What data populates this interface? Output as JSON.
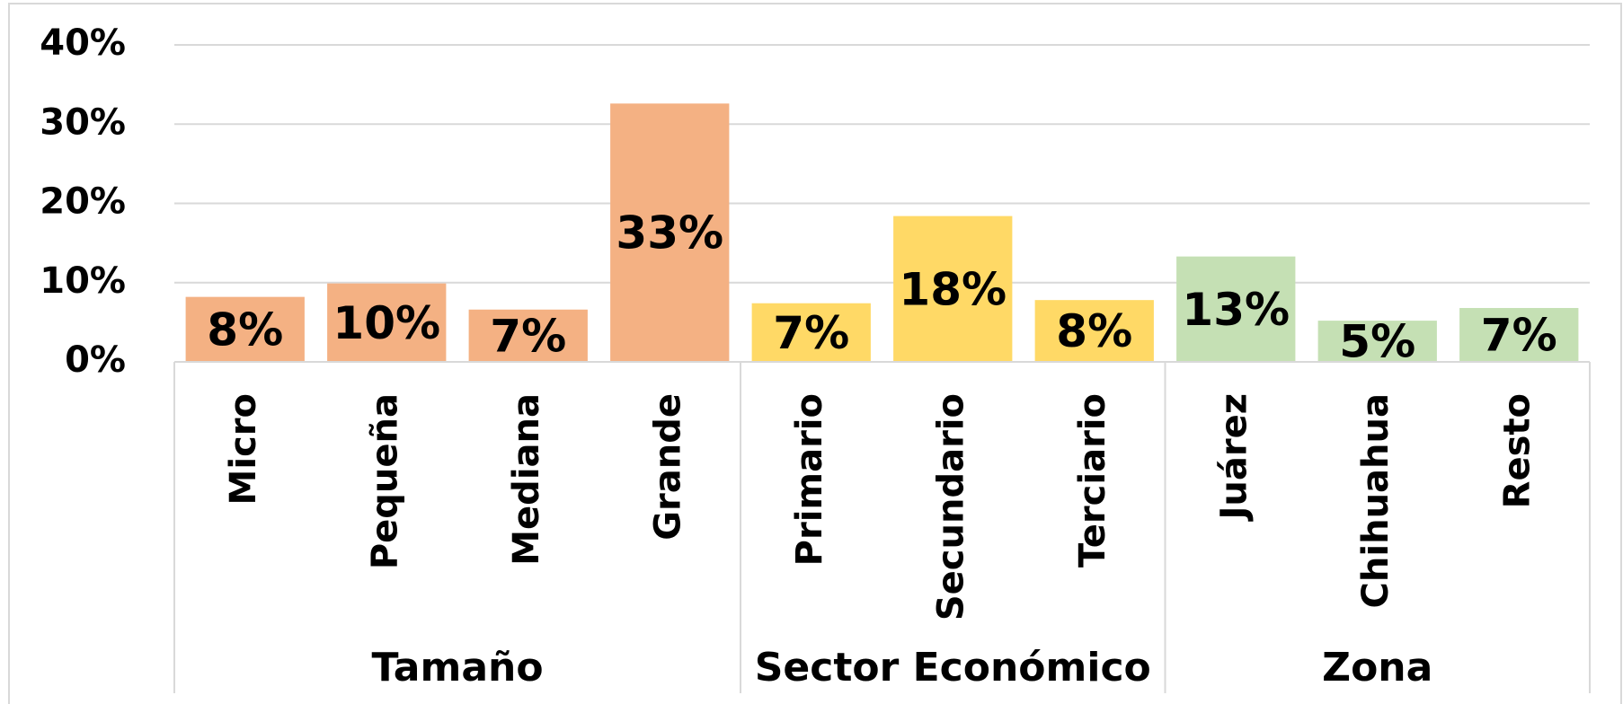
{
  "chart_data": {
    "type": "bar",
    "groups": [
      {
        "label": "Tamaño",
        "color": "#f4b183",
        "categories": [
          "Micro",
          "Pequeña",
          "Mediana",
          "Grande"
        ],
        "values": [
          8.2,
          9.9,
          6.6,
          32.6
        ],
        "value_labels": [
          "8%",
          "10%",
          "7%",
          "33%"
        ]
      },
      {
        "label": "Sector Económico",
        "color": "#ffd966",
        "categories": [
          "Primario",
          "Secundario",
          "Terciario"
        ],
        "values": [
          7.4,
          18.4,
          7.8
        ],
        "value_labels": [
          "7%",
          "18%",
          "8%"
        ]
      },
      {
        "label": "Zona",
        "color": "#c5e0b4",
        "categories": [
          "Juárez",
          "Chihuahua",
          "Resto"
        ],
        "values": [
          13.3,
          5.2,
          6.8
        ],
        "value_labels": [
          "13%",
          "5%",
          "7%"
        ]
      }
    ],
    "ylim": [
      0,
      40
    ],
    "yticks": [
      {
        "value": 0,
        "label": "0%"
      },
      {
        "value": 10,
        "label": "10%"
      },
      {
        "value": 20,
        "label": "20%"
      },
      {
        "value": 30,
        "label": "30%"
      },
      {
        "value": 40,
        "label": "40%"
      }
    ],
    "grid": true
  }
}
